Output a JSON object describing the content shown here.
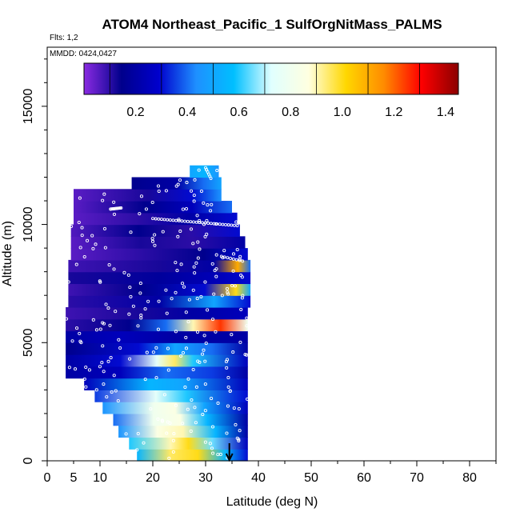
{
  "chart_data": {
    "type": "heatmap",
    "title": "ATOM4 Northeast_Pacific_1 SulfOrgNitMass_PALMS",
    "subtitle": "Flts: 1,2",
    "annotation": "MMDD: 0424,0427",
    "xlabel": "Latitude (deg N)",
    "ylabel": "Altitude (m)",
    "xlim": [
      0,
      85
    ],
    "ylim": [
      0,
      17500
    ],
    "x_ticks": [
      0,
      5,
      10,
      20,
      30,
      40,
      50,
      60,
      70,
      80
    ],
    "y_ticks": [
      0,
      5000,
      10000,
      15000
    ],
    "colorbar": {
      "range": [
        0,
        1.45
      ],
      "ticks": [
        0.2,
        0.4,
        0.6,
        0.8,
        1.0,
        1.2,
        1.4
      ],
      "tick_labels": [
        "0.2",
        "0.4",
        "0.6",
        "0.8",
        "1.0",
        "1.2",
        "1.4"
      ],
      "colors": [
        "#8a2be2",
        "#00008b",
        "#0000cd",
        "#1e90ff",
        "#00bfff",
        "#e0ffff",
        "#ffffe0",
        "#ffd700",
        "#ff8c00",
        "#ff0000",
        "#8b0000"
      ]
    },
    "arrow_marker": {
      "x": 34.5,
      "y": 600
    },
    "rows": [
      {
        "y0": 0,
        "y1": 500,
        "x0": 17,
        "x1": 38,
        "stops": [
          [
            0,
            0.55
          ],
          [
            0.3,
            0.95
          ],
          [
            0.55,
            1.0
          ],
          [
            0.8,
            0.55
          ],
          [
            1,
            0.3
          ]
        ]
      },
      {
        "y0": 500,
        "y1": 1000,
        "x0": 15.5,
        "x1": 38,
        "stops": [
          [
            0,
            0.6
          ],
          [
            0.35,
            0.9
          ],
          [
            0.5,
            1.0
          ],
          [
            0.7,
            0.65
          ],
          [
            1,
            0.25
          ]
        ]
      },
      {
        "y0": 1000,
        "y1": 1500,
        "x0": 13.5,
        "x1": 38,
        "stops": [
          [
            0,
            0.45
          ],
          [
            0.3,
            0.85
          ],
          [
            0.5,
            0.9
          ],
          [
            0.75,
            0.55
          ],
          [
            1,
            0.2
          ]
        ]
      },
      {
        "y0": 1500,
        "y1": 2000,
        "x0": 12.5,
        "x1": 38,
        "stops": [
          [
            0,
            0.4
          ],
          [
            0.3,
            0.8
          ],
          [
            0.5,
            0.85
          ],
          [
            0.7,
            0.55
          ],
          [
            1,
            0.2
          ]
        ]
      },
      {
        "y0": 2000,
        "y1": 2500,
        "x0": 10.5,
        "x1": 38,
        "stops": [
          [
            0,
            0.45
          ],
          [
            0.35,
            0.8
          ],
          [
            0.5,
            0.85
          ],
          [
            0.7,
            0.5
          ],
          [
            1,
            0.25
          ]
        ]
      },
      {
        "y0": 2500,
        "y1": 3000,
        "x0": 9,
        "x1": 38,
        "stops": [
          [
            0,
            0.35
          ],
          [
            0.4,
            0.75
          ],
          [
            0.6,
            0.6
          ],
          [
            1,
            0.3
          ]
        ]
      },
      {
        "y0": 3000,
        "y1": 3500,
        "x0": 7,
        "x1": 38,
        "stops": [
          [
            0,
            0.25
          ],
          [
            0.4,
            0.55
          ],
          [
            0.6,
            0.5
          ],
          [
            1,
            0.25
          ]
        ]
      },
      {
        "y0": 3500,
        "y1": 4000,
        "x0": 3.5,
        "x1": 38,
        "stops": [
          [
            0,
            0.2
          ],
          [
            0.3,
            0.25
          ],
          [
            0.55,
            0.4
          ],
          [
            0.8,
            0.35
          ],
          [
            1,
            0.2
          ]
        ]
      },
      {
        "y0": 4000,
        "y1": 4500,
        "x0": 3.5,
        "x1": 38,
        "stops": [
          [
            0,
            0.2
          ],
          [
            0.3,
            0.3
          ],
          [
            0.5,
            0.75
          ],
          [
            0.6,
            0.95
          ],
          [
            0.7,
            0.6
          ],
          [
            1,
            0.25
          ]
        ]
      },
      {
        "y0": 4500,
        "y1": 5000,
        "x0": 3.5,
        "x1": 38,
        "stops": [
          [
            0,
            0.15
          ],
          [
            0.4,
            0.3
          ],
          [
            0.6,
            0.5
          ],
          [
            0.8,
            0.4
          ],
          [
            1,
            0.2
          ]
        ]
      },
      {
        "y0": 5000,
        "y1": 5500,
        "x0": 3.5,
        "x1": 38,
        "stops": [
          [
            0,
            0.2
          ],
          [
            0.3,
            0.25
          ],
          [
            0.6,
            0.2
          ],
          [
            1,
            0.2
          ]
        ]
      },
      {
        "y0": 5500,
        "y1": 6000,
        "x0": 3.5,
        "x1": 38,
        "stops": [
          [
            0,
            0.1
          ],
          [
            0.35,
            0.15
          ],
          [
            0.55,
            0.4
          ],
          [
            0.7,
            0.9
          ],
          [
            0.85,
            1.25
          ],
          [
            1,
            0.8
          ]
        ]
      },
      {
        "y0": 6000,
        "y1": 6500,
        "x0": 3.5,
        "x1": 38,
        "stops": [
          [
            0,
            0.08
          ],
          [
            0.4,
            0.12
          ],
          [
            0.7,
            0.2
          ],
          [
            1,
            0.25
          ]
        ]
      },
      {
        "y0": 6500,
        "y1": 7000,
        "x0": 4,
        "x1": 38.5,
        "stops": [
          [
            0,
            0.1
          ],
          [
            0.5,
            0.2
          ],
          [
            0.8,
            0.5
          ],
          [
            1,
            0.3
          ]
        ]
      },
      {
        "y0": 7000,
        "y1": 7500,
        "x0": 4,
        "x1": 38.5,
        "stops": [
          [
            0,
            0.08
          ],
          [
            0.4,
            0.15
          ],
          [
            0.75,
            0.3
          ],
          [
            0.92,
            1.0
          ],
          [
            1,
            0.5
          ]
        ]
      },
      {
        "y0": 7500,
        "y1": 8000,
        "x0": 4,
        "x1": 38.5,
        "stops": [
          [
            0,
            0.12
          ],
          [
            0.5,
            0.18
          ],
          [
            0.85,
            0.25
          ],
          [
            1,
            0.3
          ]
        ]
      },
      {
        "y0": 8000,
        "y1": 8500,
        "x0": 4,
        "x1": 38.5,
        "stops": [
          [
            0,
            0.08
          ],
          [
            0.5,
            0.12
          ],
          [
            0.8,
            0.2
          ],
          [
            0.93,
            1.1
          ],
          [
            1,
            0.4
          ]
        ]
      },
      {
        "y0": 8500,
        "y1": 9000,
        "x0": 4.5,
        "x1": 38,
        "stops": [
          [
            0,
            0.05
          ],
          [
            0.4,
            0.1
          ],
          [
            0.75,
            0.15
          ],
          [
            1,
            0.3
          ]
        ]
      },
      {
        "y0": 9000,
        "y1": 9500,
        "x0": 4.5,
        "x1": 37.5,
        "stops": [
          [
            0,
            0.05
          ],
          [
            0.4,
            0.12
          ],
          [
            0.7,
            0.1
          ],
          [
            1,
            0.2
          ]
        ]
      },
      {
        "y0": 9500,
        "y1": 10000,
        "x0": 4.5,
        "x1": 36.5,
        "stops": [
          [
            0,
            0.06
          ],
          [
            0.4,
            0.15
          ],
          [
            0.7,
            0.1
          ],
          [
            1,
            0.3
          ]
        ]
      },
      {
        "y0": 10000,
        "y1": 10500,
        "x0": 5,
        "x1": 36,
        "stops": [
          [
            0,
            0.05
          ],
          [
            0.4,
            0.1
          ],
          [
            0.7,
            0.2
          ],
          [
            1,
            0.3
          ]
        ]
      },
      {
        "y0": 10500,
        "y1": 11000,
        "x0": 5,
        "x1": 35,
        "stops": [
          [
            0,
            0.05
          ],
          [
            0.45,
            0.15
          ],
          [
            0.75,
            0.25
          ],
          [
            1,
            0.4
          ]
        ]
      },
      {
        "y0": 11000,
        "y1": 11500,
        "x0": 5,
        "x1": 33,
        "stops": [
          [
            0,
            0.05
          ],
          [
            0.5,
            0.12
          ],
          [
            0.8,
            0.3
          ],
          [
            1,
            0.45
          ]
        ]
      },
      {
        "y0": 11500,
        "y1": 12000,
        "x0": 16,
        "x1": 33,
        "stops": [
          [
            0,
            0.15
          ],
          [
            0.5,
            0.2
          ],
          [
            0.8,
            0.4
          ],
          [
            1,
            0.5
          ]
        ]
      },
      {
        "y0": 12000,
        "y1": 12500,
        "x0": 27,
        "x1": 32.5,
        "stops": [
          [
            0,
            0.5
          ],
          [
            0.5,
            0.55
          ],
          [
            1,
            0.45
          ]
        ]
      }
    ]
  }
}
